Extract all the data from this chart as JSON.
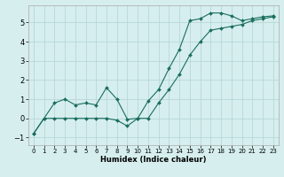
{
  "xlabel": "Humidex (Indice chaleur)",
  "bg_color": "#d6eeee",
  "grid_color": "#b8d8d8",
  "line_color": "#1a6e5e",
  "xlim": [
    -0.5,
    23.5
  ],
  "ylim": [
    -1.4,
    5.9
  ],
  "xticks": [
    0,
    1,
    2,
    3,
    4,
    5,
    6,
    7,
    8,
    9,
    10,
    11,
    12,
    13,
    14,
    15,
    16,
    17,
    18,
    19,
    20,
    21,
    22,
    23
  ],
  "yticks": [
    -1,
    0,
    1,
    2,
    3,
    4,
    5
  ],
  "line1_x": [
    0,
    1,
    2,
    3,
    4,
    5,
    6,
    7,
    8,
    9,
    10,
    11,
    12,
    13,
    14,
    15,
    16,
    17,
    18,
    19,
    20,
    21,
    22,
    23
  ],
  "line1_y": [
    -0.8,
    0.0,
    0.8,
    1.0,
    0.7,
    0.8,
    0.7,
    1.6,
    1.0,
    -0.05,
    0.0,
    0.9,
    1.5,
    2.6,
    3.6,
    5.1,
    5.2,
    5.5,
    5.5,
    5.35,
    5.1,
    5.2,
    5.3,
    5.35
  ],
  "line2_x": [
    0,
    1,
    2,
    3,
    4,
    5,
    6,
    7,
    8,
    9,
    10,
    11,
    12,
    13,
    14,
    15,
    16,
    17,
    18,
    19,
    20,
    21,
    22,
    23
  ],
  "line2_y": [
    -0.8,
    0.0,
    0.0,
    0.0,
    0.0,
    0.0,
    0.0,
    0.0,
    -0.1,
    -0.4,
    0.0,
    0.0,
    0.8,
    1.5,
    2.3,
    3.3,
    4.0,
    4.6,
    4.7,
    4.8,
    4.9,
    5.1,
    5.2,
    5.3
  ]
}
